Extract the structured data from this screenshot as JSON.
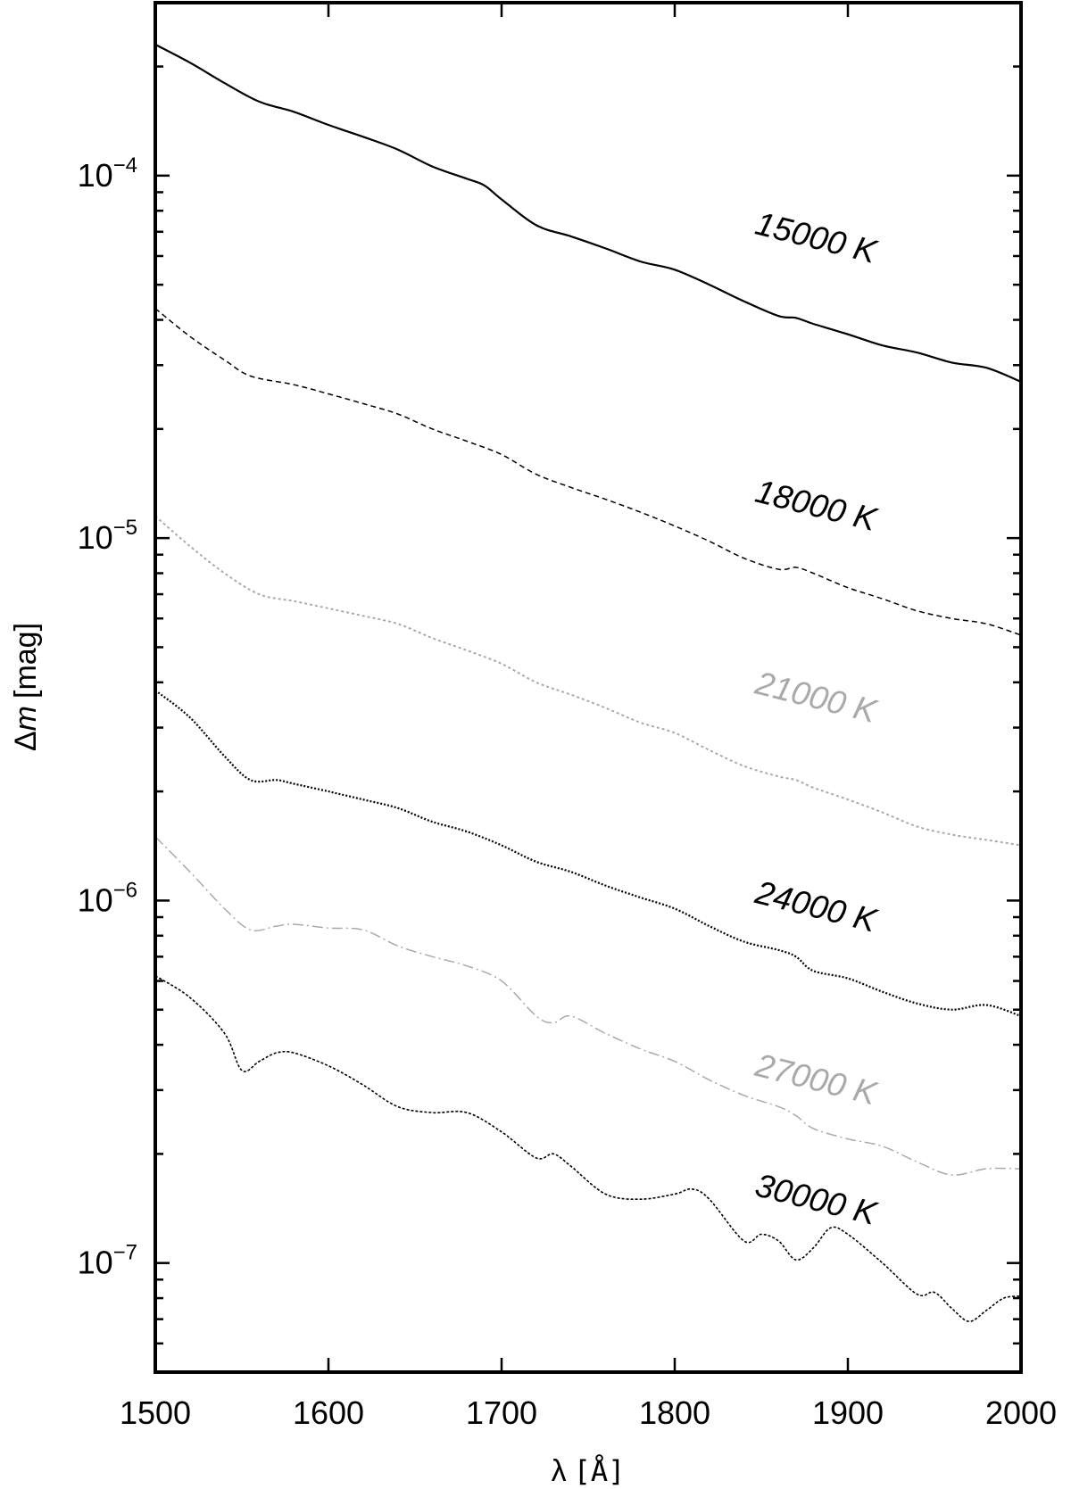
{
  "chart_data": {
    "type": "line",
    "xlabel_prefix": "λ",
    "xlabel_unit": "[Å]",
    "ylabel_prefix": "Δ",
    "ylabel_var": "m",
    "ylabel_unit": "[mag]",
    "xlim": [
      1500,
      2000
    ],
    "ylim": [
      5e-08,
      0.0003
    ],
    "yscale": "log",
    "xticks": [
      1500,
      1600,
      1700,
      1800,
      1900,
      2000
    ],
    "yticks": [
      {
        "value": 0.0001,
        "base": "10",
        "exp": "−4"
      },
      {
        "value": 1e-05,
        "base": "10",
        "exp": "−5"
      },
      {
        "value": 1e-06,
        "base": "10",
        "exp": "−6"
      },
      {
        "value": 1e-07,
        "base": "10",
        "exp": "−7"
      }
    ],
    "grid": false,
    "series": [
      {
        "name": "15000 K",
        "color": "#000000",
        "dash": "",
        "width": 2.2,
        "x": [
          1500,
          1520,
          1540,
          1560,
          1580,
          1600,
          1620,
          1640,
          1660,
          1680,
          1690,
          1700,
          1720,
          1740,
          1760,
          1780,
          1800,
          1820,
          1840,
          1860,
          1870,
          1880,
          1900,
          1920,
          1940,
          1960,
          1980,
          2000
        ],
        "y": [
          0.00023,
          0.000205,
          0.00018,
          0.00016,
          0.00015,
          0.000138,
          0.000128,
          0.000118,
          0.000106,
          9.8e-05,
          9.4e-05,
          8.6e-05,
          7.3e-05,
          6.8e-05,
          6.3e-05,
          5.8e-05,
          5.5e-05,
          5e-05,
          4.5e-05,
          4.1e-05,
          4.05e-05,
          3.9e-05,
          3.65e-05,
          3.4e-05,
          3.25e-05,
          3.05e-05,
          2.95e-05,
          2.7e-05
        ]
      },
      {
        "name": "18000 K",
        "color": "#000000",
        "dash": "6,4",
        "width": 1.5,
        "x": [
          1500,
          1520,
          1540,
          1555,
          1580,
          1600,
          1620,
          1640,
          1660,
          1680,
          1700,
          1720,
          1740,
          1760,
          1780,
          1800,
          1820,
          1840,
          1860,
          1870,
          1880,
          1900,
          1920,
          1940,
          1960,
          1980,
          2000
        ],
        "y": [
          4.3e-05,
          3.6e-05,
          3.1e-05,
          2.8e-05,
          2.65e-05,
          2.5e-05,
          2.35e-05,
          2.2e-05,
          2e-05,
          1.85e-05,
          1.7e-05,
          1.5e-05,
          1.38e-05,
          1.28e-05,
          1.18e-05,
          1.08e-05,
          9.8e-06,
          8.8e-06,
          8.2e-06,
          8.3e-06,
          8e-06,
          7.3e-06,
          6.8e-06,
          6.3e-06,
          6e-06,
          5.8e-06,
          5.4e-06
        ]
      },
      {
        "name": "21000 K",
        "color": "#aaaaaa",
        "dash": "3,3",
        "width": 2,
        "x": [
          1500,
          1520,
          1540,
          1560,
          1580,
          1600,
          1620,
          1640,
          1660,
          1680,
          1700,
          1720,
          1740,
          1760,
          1780,
          1800,
          1820,
          1840,
          1860,
          1870,
          1880,
          1900,
          1920,
          1940,
          1960,
          1980,
          2000
        ],
        "y": [
          1.15e-05,
          9.5e-06,
          8e-06,
          7e-06,
          6.7e-06,
          6.4e-06,
          6.1e-06,
          5.8e-06,
          5.3e-06,
          4.9e-06,
          4.5e-06,
          4e-06,
          3.7e-06,
          3.4e-06,
          3.1e-06,
          2.9e-06,
          2.6e-06,
          2.35e-06,
          2.2e-06,
          2.15e-06,
          2.05e-06,
          1.9e-06,
          1.75e-06,
          1.6e-06,
          1.52e-06,
          1.47e-06,
          1.42e-06
        ]
      },
      {
        "name": "24000 K",
        "color": "#000000",
        "dash": "2,2",
        "width": 2.2,
        "x": [
          1500,
          1520,
          1540,
          1555,
          1570,
          1580,
          1600,
          1620,
          1640,
          1660,
          1680,
          1700,
          1720,
          1740,
          1760,
          1780,
          1800,
          1820,
          1840,
          1860,
          1870,
          1880,
          1900,
          1920,
          1940,
          1960,
          1980,
          2000
        ],
        "y": [
          3.8e-06,
          3.2e-06,
          2.5e-06,
          2.15e-06,
          2.15e-06,
          2.1e-06,
          2e-06,
          1.9e-06,
          1.8e-06,
          1.65e-06,
          1.55e-06,
          1.42e-06,
          1.28e-06,
          1.2e-06,
          1.1e-06,
          1.02e-06,
          9.5e-07,
          8.5e-07,
          7.7e-07,
          7.3e-07,
          7e-07,
          6.4e-07,
          6.1e-07,
          5.6e-07,
          5.2e-07,
          5e-07,
          5.15e-07,
          4.8e-07
        ]
      },
      {
        "name": "27000 K",
        "color": "#aaaaaa",
        "dash": "12,4,2,4",
        "width": 1.5,
        "x": [
          1500,
          1520,
          1540,
          1555,
          1570,
          1580,
          1600,
          1620,
          1640,
          1660,
          1680,
          1700,
          1720,
          1730,
          1740,
          1760,
          1780,
          1800,
          1820,
          1840,
          1860,
          1870,
          1880,
          1900,
          1920,
          1940,
          1960,
          1980,
          2000
        ],
        "y": [
          1.5e-06,
          1.2e-06,
          9.5e-07,
          8.3e-07,
          8.5e-07,
          8.6e-07,
          8.4e-07,
          8.3e-07,
          7.5e-07,
          7e-07,
          6.6e-07,
          6e-07,
          4.8e-07,
          4.6e-07,
          4.8e-07,
          4.3e-07,
          3.9e-07,
          3.6e-07,
          3.2e-07,
          2.9e-07,
          2.7e-07,
          2.55e-07,
          2.35e-07,
          2.2e-07,
          2.1e-07,
          1.9e-07,
          1.75e-07,
          1.82e-07,
          1.82e-07
        ]
      },
      {
        "name": "30000 K",
        "color": "#000000",
        "dash": "3,2",
        "width": 1.6,
        "x": [
          1500,
          1520,
          1540,
          1550,
          1560,
          1570,
          1580,
          1600,
          1620,
          1640,
          1660,
          1680,
          1700,
          1720,
          1730,
          1740,
          1760,
          1780,
          1800,
          1810,
          1820,
          1840,
          1850,
          1860,
          1870,
          1880,
          1890,
          1900,
          1920,
          1940,
          1950,
          1960,
          1970,
          1980,
          1990,
          2000
        ],
        "y": [
          6.2e-07,
          5.4e-07,
          4.3e-07,
          3.4e-07,
          3.6e-07,
          3.8e-07,
          3.8e-07,
          3.5e-07,
          3.1e-07,
          2.7e-07,
          2.6e-07,
          2.6e-07,
          2.3e-07,
          1.95e-07,
          2e-07,
          1.85e-07,
          1.55e-07,
          1.5e-07,
          1.55e-07,
          1.6e-07,
          1.5e-07,
          1.15e-07,
          1.2e-07,
          1.15e-07,
          1.02e-07,
          1.1e-07,
          1.25e-07,
          1.2e-07,
          1e-07,
          8.2e-08,
          8.3e-08,
          7.5e-08,
          6.9e-08,
          7.4e-08,
          8e-08,
          8.1e-08
        ]
      }
    ],
    "annotations": [
      {
        "text": "15000 K",
        "color": "#000000",
        "at_x": 1880,
        "at_y": 6.3e-05
      },
      {
        "text": "18000 K",
        "color": "#000000",
        "at_x": 1880,
        "at_y": 1.15e-05
      },
      {
        "text": "21000 K",
        "color": "#aaaaaa",
        "at_x": 1880,
        "at_y": 3.4e-06
      },
      {
        "text": "24000 K",
        "color": "#000000",
        "at_x": 1880,
        "at_y": 9e-07
      },
      {
        "text": "27000 K",
        "color": "#aaaaaa",
        "at_x": 1880,
        "at_y": 3e-07
      },
      {
        "text": "30000 K",
        "color": "#000000",
        "at_x": 1880,
        "at_y": 1.4e-07
      }
    ]
  }
}
